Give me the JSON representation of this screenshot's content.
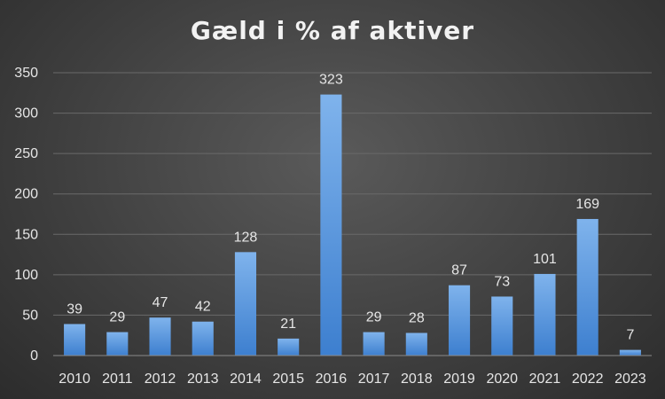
{
  "chart_data": {
    "type": "bar",
    "title": "Gæld i % af aktiver",
    "categories": [
      "2010",
      "2011",
      "2012",
      "2013",
      "2014",
      "2015",
      "2016",
      "2017",
      "2018",
      "2019",
      "2020",
      "2021",
      "2022",
      "2023"
    ],
    "values": [
      39,
      29,
      47,
      42,
      128,
      21,
      323,
      29,
      28,
      87,
      73,
      101,
      169,
      7
    ],
    "data_labels": [
      "39",
      "29",
      "47",
      "42",
      "128",
      "21",
      "323",
      "29",
      "28",
      "87",
      "73",
      "101",
      "169",
      "7"
    ],
    "ylim": [
      0,
      350
    ],
    "yticks": [
      "0",
      "50",
      "100",
      "150",
      "200",
      "250",
      "300",
      "350"
    ],
    "grid": true,
    "legend": "none",
    "colors": {
      "bar_top": "#7fb3ec",
      "bar_bottom": "#3d7fcf",
      "grid": "#6a6a6a",
      "axis": "#8a8a8a",
      "text": "#e6e6e6"
    }
  }
}
